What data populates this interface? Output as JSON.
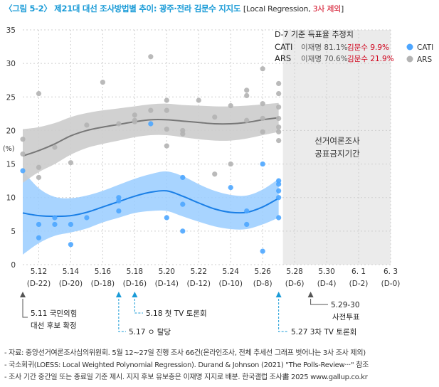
{
  "title": {
    "main": "〈그림 5-2〉 제21대 대선 조사방법별 추이: 광주·전라 김문수 지지도",
    "sub_open": "[Local Regression, ",
    "sub_red": "3사 제외",
    "sub_close": "]"
  },
  "notes": [
    "- 자료: 중앙선거여론조사심의위원회. 5월 12~27일 진행 조사 66건(온라인조사, 전체 추세선 그래프 벗어나는 3사 조사 제외)",
    "- 국소회귀(LOESS: Local Weighted Polynomial Regression). Durand & Johnson (2021) \"The Polls-Review···\" 참조",
    "- 조사 기간 중간일 또는 종료일 기준 제시. 지지 후보 유보층은 이재명 지지로 배분. 한국갤럽 조사畵 2025 www.gallup.co.kr"
  ],
  "colors": {
    "cati": "#4da6ff",
    "cati_line": "#1a7fe6",
    "cati_band": "#99ccff",
    "ars": "#b3b3b3",
    "ars_line": "#777777",
    "ars_band": "#cccccc",
    "blackout": "#ebebeb",
    "red": "#d0021b",
    "event_blue": "#1a9bd7"
  },
  "chart_data": {
    "type": "scatter",
    "ylabel": "(%)",
    "ylim": [
      0,
      35
    ],
    "yticks": [
      0,
      5,
      10,
      15,
      20,
      25,
      30,
      35
    ],
    "xrange": [
      "5.11",
      "6.3"
    ],
    "xticks": [
      {
        "date": "5.12",
        "dday": "(D-22)"
      },
      {
        "date": "5.14",
        "dday": "(D-20)"
      },
      {
        "date": "5.16",
        "dday": "(D-18)"
      },
      {
        "date": "5.18",
        "dday": "(D-16)"
      },
      {
        "date": "5.20",
        "dday": "(D-14)"
      },
      {
        "date": "5.22",
        "dday": "(D-12)"
      },
      {
        "date": "5.24",
        "dday": "(D-10)"
      },
      {
        "date": "5.26",
        "dday": "(D-8)"
      },
      {
        "date": "5.28",
        "dday": "(D-6)"
      },
      {
        "date": "5.30",
        "dday": "(D-4)"
      },
      {
        "date": "6. 1",
        "dday": "(D-2)"
      },
      {
        "date": "6. 3",
        "dday": "(D-0)"
      }
    ],
    "grid": true,
    "legend": "top-right",
    "blackout": {
      "start": "5.27",
      "end": "6.3",
      "label_lines": [
        "선거여론조사",
        "공표금지기간"
      ]
    },
    "estimate_box": {
      "title": "D-7 기준 득표율 추정치",
      "rows": [
        {
          "method": "CATI",
          "lee": "이재명 81.1%,",
          "kim": "김문수  9.9%"
        },
        {
          "method": "ARS",
          "lee": "이재명 70.6%,",
          "kim": "김문수 21.9%"
        }
      ]
    },
    "series": [
      {
        "name": "CATI",
        "points": [
          [
            "5.11",
            14
          ],
          [
            "5.12",
            4
          ],
          [
            "5.12",
            6
          ],
          [
            "5.13",
            6
          ],
          [
            "5.13",
            7
          ],
          [
            "5.14",
            3
          ],
          [
            "5.14",
            6
          ],
          [
            "5.15",
            7
          ],
          [
            "5.17",
            8
          ],
          [
            "5.17",
            10
          ],
          [
            "5.17",
            9.5
          ],
          [
            "5.19",
            21
          ],
          [
            "5.20",
            7
          ],
          [
            "5.21",
            5
          ],
          [
            "5.21",
            9
          ],
          [
            "5.21",
            13
          ],
          [
            "5.24",
            11.5
          ],
          [
            "5.25",
            6
          ],
          [
            "5.25",
            8
          ],
          [
            "5.26",
            15
          ],
          [
            "5.26",
            2
          ],
          [
            "5.27",
            7
          ],
          [
            "5.27",
            10
          ],
          [
            "5.27",
            11
          ],
          [
            "5.27",
            12
          ],
          [
            "5.27",
            12.5
          ]
        ],
        "trend": [
          [
            "5.11",
            7.7
          ],
          [
            "5.12",
            7.3
          ],
          [
            "5.13",
            7.2
          ],
          [
            "5.14",
            7.3
          ],
          [
            "5.15",
            7.8
          ],
          [
            "5.16",
            8.6
          ],
          [
            "5.17",
            9.4
          ],
          [
            "5.18",
            10.2
          ],
          [
            "5.19",
            10.8
          ],
          [
            "5.20",
            11.0
          ],
          [
            "5.21",
            10.2
          ],
          [
            "5.22",
            9.2
          ],
          [
            "5.23",
            8.3
          ],
          [
            "5.24",
            7.8
          ],
          [
            "5.25",
            7.8
          ],
          [
            "5.26",
            8.6
          ],
          [
            "5.27",
            9.9
          ]
        ],
        "band_low": [
          [
            "5.11",
            1.5
          ],
          [
            "5.12",
            3.2
          ],
          [
            "5.13",
            4.3
          ],
          [
            "5.14",
            4.8
          ],
          [
            "5.15",
            5.4
          ],
          [
            "5.16",
            6.3
          ],
          [
            "5.17",
            7.0
          ],
          [
            "5.18",
            7.7
          ],
          [
            "5.19",
            8.0
          ],
          [
            "5.20",
            8.0
          ],
          [
            "5.21",
            7.2
          ],
          [
            "5.22",
            6.4
          ],
          [
            "5.23",
            5.7
          ],
          [
            "5.24",
            5.3
          ],
          [
            "5.25",
            5.3
          ],
          [
            "5.26",
            6.0
          ],
          [
            "5.27",
            7.0
          ]
        ],
        "band_high": [
          [
            "5.11",
            14.0
          ],
          [
            "5.12",
            11.4
          ],
          [
            "5.13",
            10.1
          ],
          [
            "5.14",
            9.9
          ],
          [
            "5.15",
            10.3
          ],
          [
            "5.16",
            11.0
          ],
          [
            "5.17",
            11.9
          ],
          [
            "5.18",
            12.8
          ],
          [
            "5.19",
            13.5
          ],
          [
            "5.20",
            13.9
          ],
          [
            "5.21",
            13.2
          ],
          [
            "5.22",
            12.0
          ],
          [
            "5.23",
            11.0
          ],
          [
            "5.24",
            10.4
          ],
          [
            "5.25",
            10.3
          ],
          [
            "5.26",
            11.2
          ],
          [
            "5.27",
            12.8
          ]
        ]
      },
      {
        "name": "ARS",
        "points": [
          [
            "5.11",
            16.5
          ],
          [
            "5.11",
            18.7
          ],
          [
            "5.12",
            25.5
          ],
          [
            "5.12",
            13
          ],
          [
            "5.12",
            14.5
          ],
          [
            "5.13",
            17.5
          ],
          [
            "5.14",
            15.2
          ],
          [
            "5.15",
            20.8
          ],
          [
            "5.16",
            27.2
          ],
          [
            "5.17",
            21
          ],
          [
            "5.18",
            22.3
          ],
          [
            "5.18",
            21.3
          ],
          [
            "5.18",
            21.5
          ],
          [
            "5.19",
            31
          ],
          [
            "5.19",
            23
          ],
          [
            "5.20",
            17.7
          ],
          [
            "5.20",
            20.2
          ],
          [
            "5.20",
            23
          ],
          [
            "5.20",
            24.5
          ],
          [
            "5.21",
            19.5
          ],
          [
            "5.21",
            20
          ],
          [
            "5.22",
            24.5
          ],
          [
            "5.23",
            22
          ],
          [
            "5.23",
            13.5
          ],
          [
            "5.24",
            23.7
          ],
          [
            "5.24",
            15
          ],
          [
            "5.25",
            26
          ],
          [
            "5.25",
            25.2
          ],
          [
            "5.25",
            21.5
          ],
          [
            "5.26",
            29.2
          ],
          [
            "5.26",
            24
          ],
          [
            "5.26",
            21.8
          ],
          [
            "5.26",
            19.8
          ],
          [
            "5.27",
            27
          ],
          [
            "5.27",
            25.5
          ],
          [
            "5.27",
            23.5
          ],
          [
            "5.27",
            21.8
          ],
          [
            "5.27",
            20.5
          ],
          [
            "5.27",
            19.8
          ],
          [
            "5.27",
            18.5
          ]
        ],
        "trend": [
          [
            "5.11",
            16.2
          ],
          [
            "5.12",
            17.0
          ],
          [
            "5.13",
            18.0
          ],
          [
            "5.14",
            19.2
          ],
          [
            "5.15",
            20.0
          ],
          [
            "5.16",
            20.5
          ],
          [
            "5.17",
            20.9
          ],
          [
            "5.18",
            21.3
          ],
          [
            "5.19",
            21.6
          ],
          [
            "5.20",
            21.6
          ],
          [
            "5.21",
            21.4
          ],
          [
            "5.22",
            21.2
          ],
          [
            "5.23",
            21.0
          ],
          [
            "5.24",
            21.0
          ],
          [
            "5.25",
            21.2
          ],
          [
            "5.26",
            21.6
          ],
          [
            "5.27",
            21.9
          ]
        ],
        "band_low": [
          [
            "5.11",
            12.2
          ],
          [
            "5.12",
            13.8
          ],
          [
            "5.13",
            15.0
          ],
          [
            "5.14",
            16.4
          ],
          [
            "5.15",
            17.4
          ],
          [
            "5.16",
            18.0
          ],
          [
            "5.17",
            18.5
          ],
          [
            "5.18",
            19.0
          ],
          [
            "5.19",
            19.3
          ],
          [
            "5.20",
            19.3
          ],
          [
            "5.21",
            19.0
          ],
          [
            "5.22",
            18.7
          ],
          [
            "5.23",
            18.5
          ],
          [
            "5.24",
            18.5
          ],
          [
            "5.25",
            18.8
          ],
          [
            "5.26",
            19.3
          ],
          [
            "5.27",
            19.8
          ]
        ],
        "band_high": [
          [
            "5.11",
            20.2
          ],
          [
            "5.12",
            20.5
          ],
          [
            "5.13",
            21.1
          ],
          [
            "5.14",
            22.0
          ],
          [
            "5.15",
            22.6
          ],
          [
            "5.16",
            23.0
          ],
          [
            "5.17",
            23.3
          ],
          [
            "5.18",
            23.6
          ],
          [
            "5.19",
            23.9
          ],
          [
            "5.20",
            24.0
          ],
          [
            "5.21",
            23.8
          ],
          [
            "5.22",
            23.7
          ],
          [
            "5.23",
            23.6
          ],
          [
            "5.24",
            23.6
          ],
          [
            "5.25",
            23.7
          ],
          [
            "5.26",
            23.9
          ],
          [
            "5.27",
            24.1
          ]
        ]
      }
    ],
    "events": [
      {
        "date": "5.11",
        "color": "dark",
        "lines": [
          "5.11 국민의힘",
          "대선 후보 확정"
        ]
      },
      {
        "date": "5.17",
        "color": "blue",
        "lines": [
          "5.17 ㅇ 탈당"
        ]
      },
      {
        "date": "5.18",
        "color": "blue",
        "lines": [
          "5.18 첫 TV 토론회"
        ]
      },
      {
        "date": "5.27",
        "color": "blue",
        "lines": [
          "5.27 3차 TV 토론회"
        ]
      },
      {
        "date": "5.29",
        "color": "dark",
        "lines": [
          "5.29-30",
          "사전투표"
        ]
      }
    ]
  }
}
